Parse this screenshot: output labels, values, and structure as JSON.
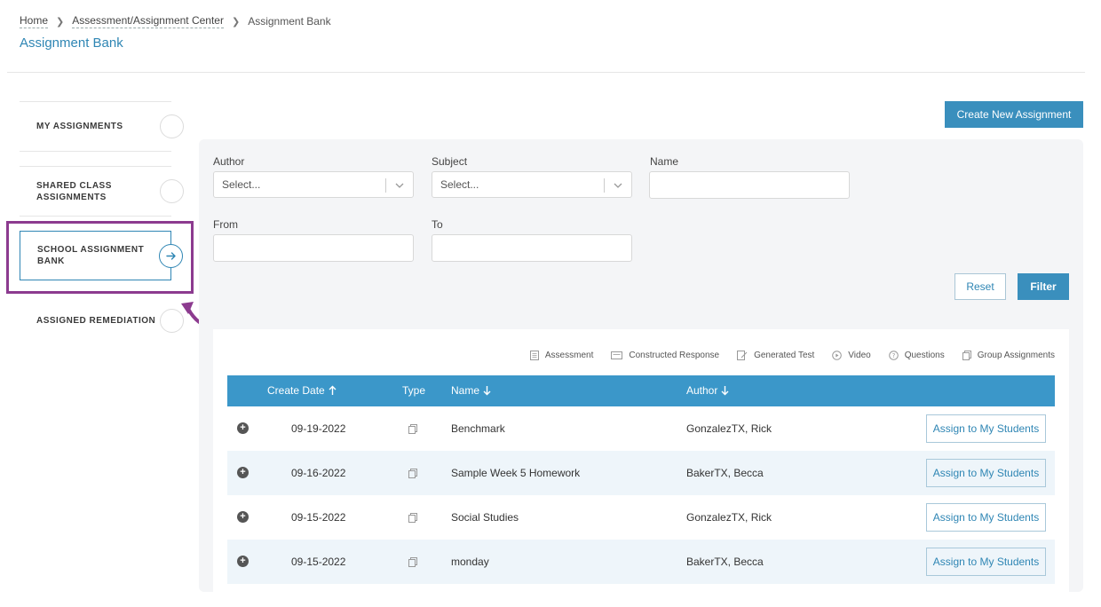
{
  "breadcrumb": {
    "home": "Home",
    "center": "Assessment/Assignment Center",
    "current": "Assignment Bank"
  },
  "page_title": "Assignment Bank",
  "sidebar": {
    "items": [
      {
        "label": "MY ASSIGNMENTS"
      },
      {
        "label": "SHARED CLASS ASSIGNMENTS"
      },
      {
        "label": "SCHOOL ASSIGNMENT BANK",
        "active": true
      },
      {
        "label": "ASSIGNED REMEDIATION"
      }
    ]
  },
  "create_button": "Create New Assignment",
  "filters": {
    "author_label": "Author",
    "author_placeholder": "Select...",
    "subject_label": "Subject",
    "subject_placeholder": "Select...",
    "name_label": "Name",
    "from_label": "From",
    "to_label": "To",
    "reset": "Reset",
    "filter": "Filter"
  },
  "legend": {
    "assessment": "Assessment",
    "constructed": "Constructed Response",
    "generated": "Generated Test",
    "video": "Video",
    "questions": "Questions",
    "group": "Group Assignments"
  },
  "table": {
    "headers": {
      "create_date": "Create Date",
      "type": "Type",
      "name": "Name",
      "author": "Author"
    },
    "rows": [
      {
        "date": "09-19-2022",
        "name": "Benchmark",
        "author": "GonzalezTX, Rick",
        "action": "Assign to My Students"
      },
      {
        "date": "09-16-2022",
        "name": "Sample Week 5 Homework",
        "author": "BakerTX, Becca",
        "action": "Assign to My Students"
      },
      {
        "date": "09-15-2022",
        "name": "Social Studies",
        "author": "GonzalezTX, Rick",
        "action": "Assign to My Students"
      },
      {
        "date": "09-15-2022",
        "name": "monday",
        "author": "BakerTX, Becca",
        "action": "Assign to My Students"
      }
    ]
  },
  "colors": {
    "accent": "#3a8fbd",
    "highlight": "#8c3b8f",
    "header_bg": "#3b97c9"
  },
  "icons": [
    "chevron-right-icon",
    "chevron-down-icon",
    "arrow-right-icon",
    "curved-arrow-icon",
    "plus-circle-icon",
    "group-assignment-icon",
    "arrow-up-icon",
    "arrow-down-icon"
  ]
}
